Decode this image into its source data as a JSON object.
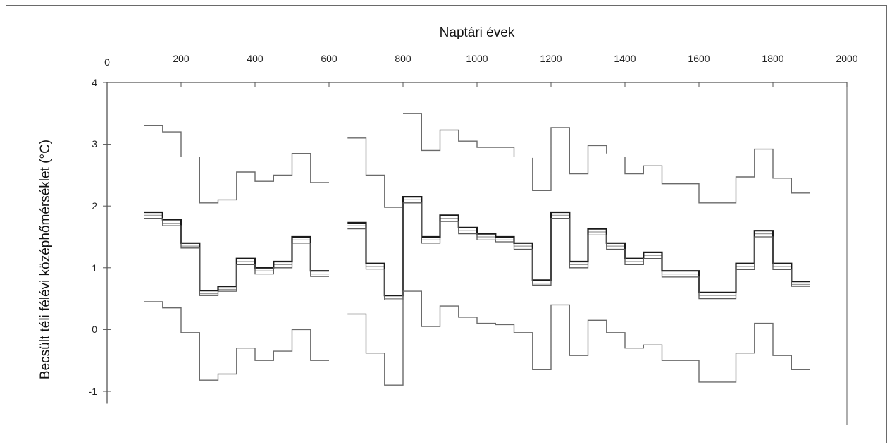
{
  "chart_data": {
    "type": "line",
    "title": "",
    "xlabel": "Naptári évek",
    "ylabel": "Becsült téli félévi középhőmérséklet (°C)",
    "xlim": [
      0,
      2000
    ],
    "ylim": [
      -1.2,
      4
    ],
    "x_ticks": [
      "0",
      "200",
      "400",
      "600",
      "800",
      "1000",
      "1200",
      "1400",
      "1600",
      "1800",
      "2000"
    ],
    "y_ticks": [
      "4",
      "3",
      "2",
      "1",
      "0",
      "-1"
    ],
    "x_axis_position": "top",
    "grid": false,
    "legend": "none",
    "step_series": [
      {
        "values": [
          [
            100,
            3.3
          ],
          [
            150,
            3.2
          ],
          [
            200,
            2.8
          ],
          null,
          [
            250,
            2.8
          ],
          [
            250,
            2.05
          ],
          [
            300,
            2.1
          ],
          [
            350,
            2.55
          ],
          [
            400,
            2.4
          ],
          [
            450,
            2.5
          ],
          [
            500,
            2.85
          ],
          [
            550,
            2.38
          ],
          [
            600,
            2.38
          ],
          null,
          [
            650,
            3.1
          ],
          [
            700,
            2.5
          ],
          [
            750,
            1.98
          ],
          [
            800,
            1.98
          ],
          null,
          [
            800,
            3.5
          ],
          [
            850,
            2.9
          ],
          [
            900,
            3.23
          ],
          [
            950,
            3.05
          ],
          [
            1000,
            2.95
          ],
          [
            1050,
            2.95
          ],
          [
            1100,
            2.8
          ],
          null,
          [
            1150,
            2.78
          ],
          [
            1150,
            2.25
          ],
          [
            1200,
            3.27
          ],
          [
            1250,
            2.52
          ],
          [
            1300,
            2.98
          ],
          [
            1350,
            2.85
          ],
          null,
          [
            1400,
            2.8
          ],
          [
            1400,
            2.52
          ],
          [
            1450,
            2.65
          ],
          [
            1500,
            2.36
          ],
          [
            1550,
            2.36
          ],
          [
            1600,
            2.05
          ],
          [
            1650,
            2.05
          ],
          [
            1700,
            2.47
          ],
          [
            1750,
            2.92
          ],
          [
            1800,
            2.45
          ],
          [
            1850,
            2.21
          ],
          [
            1900,
            2.21
          ]
        ]
      },
      {
        "values": [
          [
            100,
            1.85
          ],
          [
            150,
            1.72
          ],
          [
            200,
            1.35
          ],
          [
            250,
            0.58
          ],
          [
            300,
            0.65
          ],
          [
            350,
            1.1
          ],
          [
            400,
            0.95
          ],
          [
            450,
            1.05
          ],
          [
            500,
            1.45
          ],
          [
            550,
            0.9
          ],
          [
            600,
            0.9
          ],
          null,
          [
            650,
            1.68
          ],
          [
            700,
            1.02
          ],
          [
            750,
            0.5
          ],
          [
            800,
            0.5
          ],
          [
            800,
            2.1
          ],
          [
            850,
            1.45
          ],
          [
            900,
            1.8
          ],
          [
            950,
            1.6
          ],
          [
            1000,
            1.5
          ],
          [
            1050,
            1.45
          ],
          [
            1100,
            1.35
          ],
          [
            1150,
            0.75
          ],
          [
            1200,
            1.85
          ],
          [
            1250,
            1.05
          ],
          [
            1300,
            1.58
          ],
          [
            1350,
            1.35
          ],
          [
            1400,
            1.1
          ],
          [
            1450,
            1.2
          ],
          [
            1500,
            0.9
          ],
          [
            1550,
            0.9
          ],
          [
            1600,
            0.55
          ],
          [
            1650,
            0.55
          ],
          [
            1700,
            1.02
          ],
          [
            1750,
            1.55
          ],
          [
            1800,
            1.02
          ],
          [
            1850,
            0.73
          ],
          [
            1900,
            0.73
          ]
        ]
      },
      {
        "values": [
          [
            100,
            1.9
          ],
          [
            150,
            1.78
          ],
          [
            200,
            1.4
          ],
          [
            250,
            0.63
          ],
          [
            300,
            0.7
          ],
          [
            350,
            1.15
          ],
          [
            400,
            1.0
          ],
          [
            450,
            1.1
          ],
          [
            500,
            1.5
          ],
          [
            550,
            0.95
          ],
          [
            600,
            0.95
          ],
          null,
          [
            650,
            1.73
          ],
          [
            700,
            1.07
          ],
          [
            750,
            0.55
          ],
          [
            800,
            0.55
          ],
          [
            800,
            2.15
          ],
          [
            850,
            1.5
          ],
          [
            900,
            1.85
          ],
          [
            950,
            1.65
          ],
          [
            1000,
            1.55
          ],
          [
            1050,
            1.5
          ],
          [
            1100,
            1.4
          ],
          [
            1150,
            0.8
          ],
          [
            1200,
            1.9
          ],
          [
            1250,
            1.1
          ],
          [
            1300,
            1.63
          ],
          [
            1350,
            1.4
          ],
          [
            1400,
            1.15
          ],
          [
            1450,
            1.25
          ],
          [
            1500,
            0.95
          ],
          [
            1550,
            0.95
          ],
          [
            1600,
            0.6
          ],
          [
            1650,
            0.6
          ],
          [
            1700,
            1.07
          ],
          [
            1750,
            1.6
          ],
          [
            1800,
            1.07
          ],
          [
            1850,
            0.78
          ],
          [
            1900,
            0.78
          ]
        ]
      },
      {
        "values": [
          [
            100,
            1.8
          ],
          [
            150,
            1.68
          ],
          [
            200,
            1.32
          ],
          [
            250,
            0.55
          ],
          [
            300,
            0.62
          ],
          [
            350,
            1.05
          ],
          [
            400,
            0.9
          ],
          [
            450,
            1.0
          ],
          [
            500,
            1.4
          ],
          [
            550,
            0.86
          ],
          [
            600,
            0.86
          ],
          null,
          [
            650,
            1.63
          ],
          [
            700,
            0.98
          ],
          [
            750,
            0.48
          ],
          [
            800,
            0.48
          ],
          [
            800,
            2.05
          ],
          [
            850,
            1.4
          ],
          [
            900,
            1.75
          ],
          [
            950,
            1.55
          ],
          [
            1000,
            1.45
          ],
          [
            1050,
            1.42
          ],
          [
            1100,
            1.3
          ],
          [
            1150,
            0.72
          ],
          [
            1200,
            1.8
          ],
          [
            1250,
            1.0
          ],
          [
            1300,
            1.53
          ],
          [
            1350,
            1.3
          ],
          [
            1400,
            1.05
          ],
          [
            1450,
            1.15
          ],
          [
            1500,
            0.85
          ],
          [
            1550,
            0.85
          ],
          [
            1600,
            0.5
          ],
          [
            1650,
            0.5
          ],
          [
            1700,
            0.97
          ],
          [
            1750,
            1.5
          ],
          [
            1800,
            0.97
          ],
          [
            1850,
            0.7
          ],
          [
            1900,
            0.7
          ]
        ]
      },
      {
        "values": [
          [
            100,
            0.45
          ],
          [
            150,
            0.35
          ],
          [
            200,
            -0.05
          ],
          [
            250,
            -0.82
          ],
          [
            300,
            -0.72
          ],
          [
            350,
            -0.3
          ],
          [
            400,
            -0.5
          ],
          [
            450,
            -0.35
          ],
          [
            500,
            0.0
          ],
          [
            550,
            -0.5
          ],
          [
            600,
            -0.5
          ],
          null,
          [
            650,
            0.25
          ],
          [
            700,
            -0.38
          ],
          [
            750,
            -0.9
          ],
          [
            800,
            -0.9
          ],
          [
            800,
            0.62
          ],
          [
            850,
            0.05
          ],
          [
            900,
            0.38
          ],
          [
            950,
            0.2
          ],
          [
            1000,
            0.1
          ],
          [
            1050,
            0.08
          ],
          [
            1100,
            -0.05
          ],
          [
            1150,
            -0.65
          ],
          [
            1200,
            0.4
          ],
          [
            1250,
            -0.42
          ],
          [
            1300,
            0.15
          ],
          [
            1350,
            -0.05
          ],
          [
            1400,
            -0.3
          ],
          [
            1450,
            -0.25
          ],
          [
            1500,
            -0.5
          ],
          [
            1550,
            -0.5
          ],
          [
            1600,
            -0.85
          ],
          [
            1650,
            -0.85
          ],
          [
            1700,
            -0.38
          ],
          [
            1750,
            0.1
          ],
          [
            1800,
            -0.42
          ],
          [
            1850,
            -0.65
          ],
          [
            1900,
            -0.65
          ]
        ]
      }
    ]
  }
}
